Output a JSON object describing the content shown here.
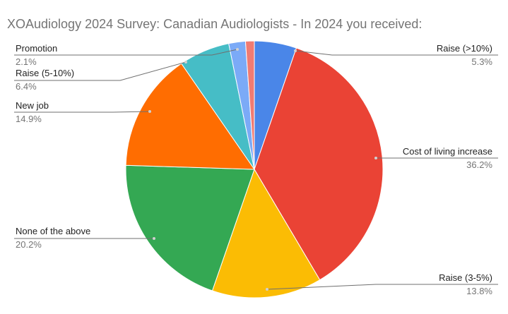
{
  "chart_data": {
    "type": "pie",
    "title": "XOAudiology 2024 Survey: Canadian Audiologists - In 2024 you received:",
    "start_angle_deg": 0,
    "direction": "clockwise",
    "slices": [
      {
        "label": "Raise (>10%)",
        "value": 5.3,
        "value_label": "5.3%",
        "color": "#4a86e8"
      },
      {
        "label": "Cost of living increase",
        "value": 36.2,
        "value_label": "36.2%",
        "color": "#ea4335"
      },
      {
        "label": "Raise (3-5%)",
        "value": 13.8,
        "value_label": "13.8%",
        "color": "#fbbc04"
      },
      {
        "label": "None of the above",
        "value": 20.2,
        "value_label": "20.2%",
        "color": "#34a853"
      },
      {
        "label": "New job",
        "value": 14.9,
        "value_label": "14.9%",
        "color": "#ff6d01"
      },
      {
        "label": "Raise (5-10%)",
        "value": 6.4,
        "value_label": "6.4%",
        "color": "#46bdc6"
      },
      {
        "label": "Promotion",
        "value": 2.1,
        "value_label": "2.1%",
        "color": "#7baaf7"
      },
      {
        "label": "",
        "value": 1.1,
        "value_label": "",
        "color": "#f07b72"
      }
    ]
  }
}
